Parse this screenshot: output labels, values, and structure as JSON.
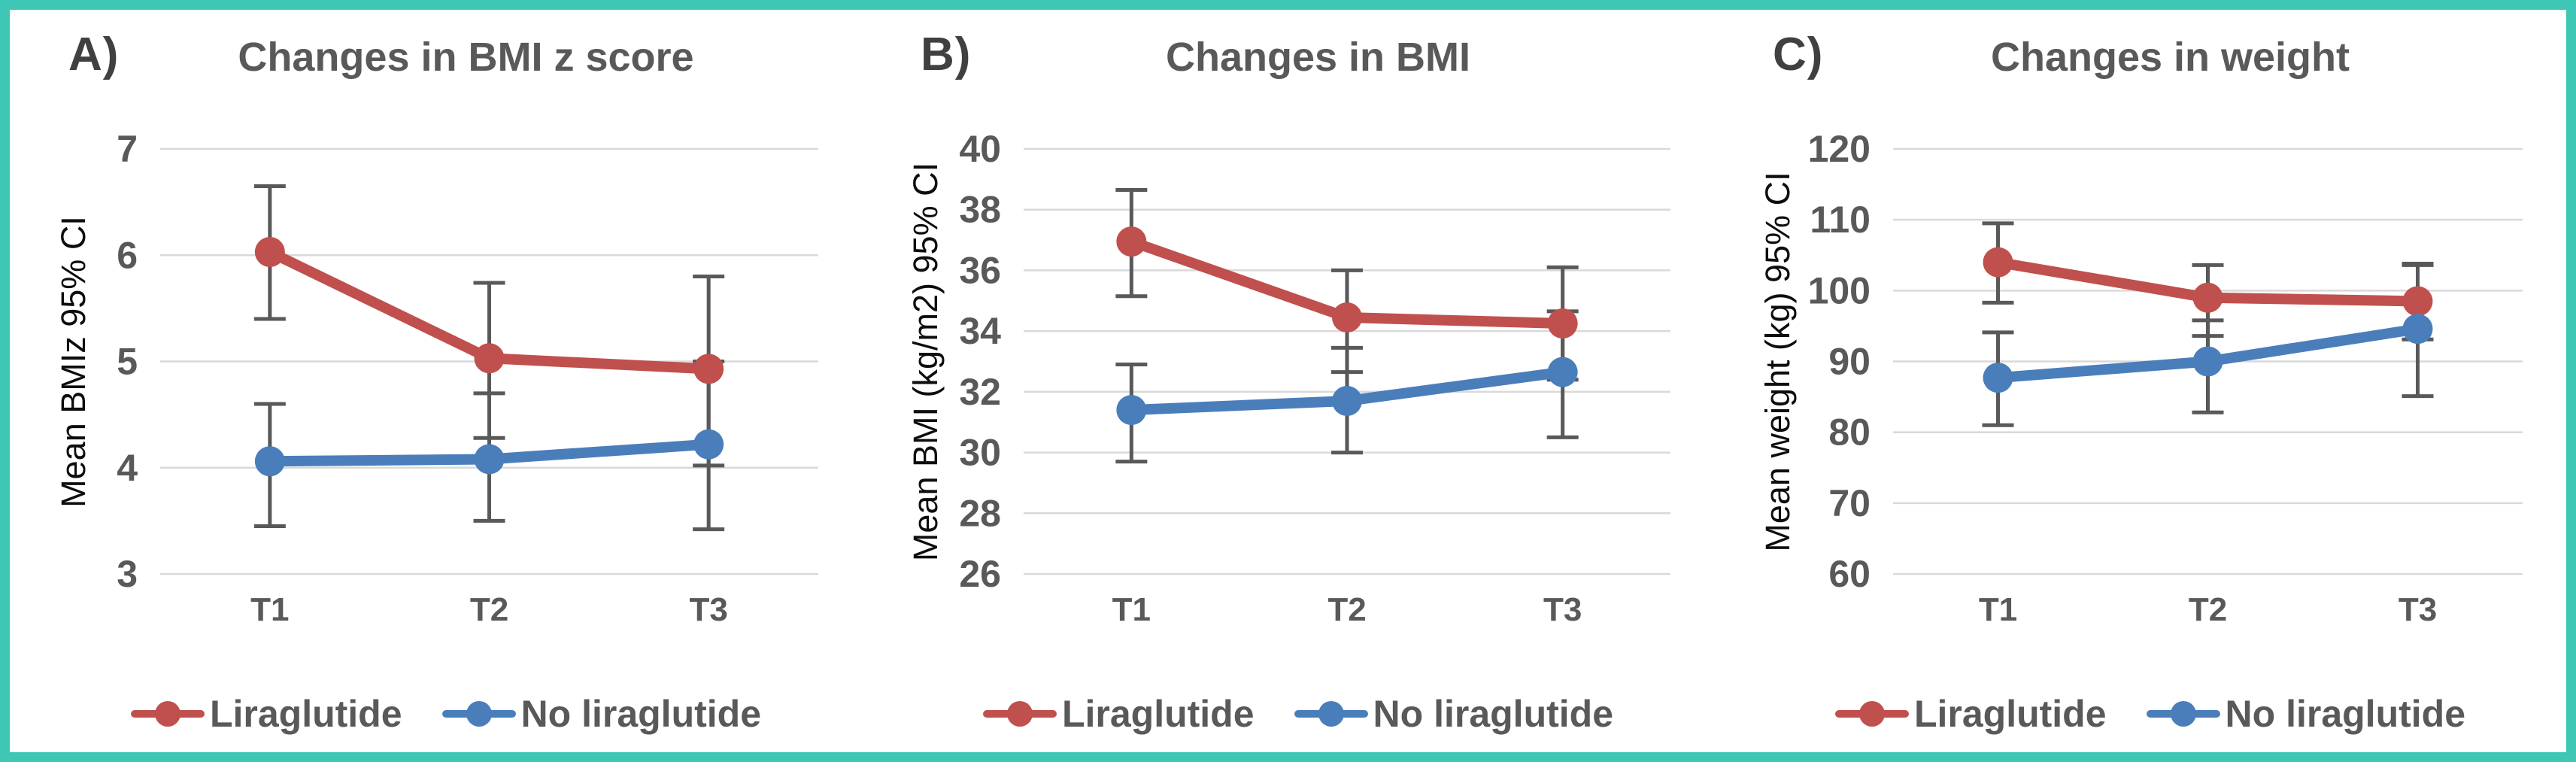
{
  "figure": {
    "border_color": "#3EC7B4",
    "background": "#FFFFFF",
    "text_color": "#595959",
    "axis_label_color": "#0D0D0D",
    "grid_color": "#D9D9D9",
    "error_bar_color": "#595959",
    "accent_red": "#C0504D",
    "accent_blue": "#4A7EBB"
  },
  "chart_data": [
    {
      "type": "line",
      "panel_label": "A)",
      "title": "Changes in BMI z score",
      "xlabel": "",
      "ylabel": "Mean BMIz 95% CI",
      "categories": [
        "T1",
        "T2",
        "T3"
      ],
      "yticks": [
        7,
        6,
        5,
        4,
        3
      ],
      "ylim": [
        3,
        7
      ],
      "grid": true,
      "legend_position": "bottom",
      "error_bars": true,
      "series": [
        {
          "name": "Liraglutide",
          "color": "#C0504D",
          "values": [
            6.03,
            5.03,
            4.93
          ],
          "ci_low": [
            5.4,
            4.28,
            4.02
          ],
          "ci_high": [
            6.65,
            5.74,
            5.8
          ]
        },
        {
          "name": "No liraglutide",
          "color": "#4A7EBB",
          "values": [
            4.06,
            4.08,
            4.22
          ],
          "ci_low": [
            3.45,
            3.5,
            3.42
          ],
          "ci_high": [
            4.6,
            4.7,
            5.0
          ]
        }
      ]
    },
    {
      "type": "line",
      "panel_label": "B)",
      "title": "Changes in BMI",
      "xlabel": "",
      "ylabel": "Mean BMI (kg/m2) 95% CI",
      "categories": [
        "T1",
        "T2",
        "T3"
      ],
      "yticks": [
        40,
        38,
        36,
        34,
        32,
        30,
        28,
        26
      ],
      "ylim": [
        26,
        40
      ],
      "grid": true,
      "legend_position": "bottom",
      "error_bars": true,
      "series": [
        {
          "name": "Liraglutide",
          "color": "#C0504D",
          "values": [
            36.95,
            34.45,
            34.25
          ],
          "ci_low": [
            35.15,
            32.65,
            32.4
          ],
          "ci_high": [
            38.65,
            36.0,
            36.1
          ]
        },
        {
          "name": "No liraglutide",
          "color": "#4A7EBB",
          "values": [
            31.4,
            31.7,
            32.65
          ],
          "ci_low": [
            29.7,
            30.0,
            30.5
          ],
          "ci_high": [
            32.9,
            33.45,
            34.65
          ]
        }
      ]
    },
    {
      "type": "line",
      "panel_label": "C)",
      "title": "Changes in weight",
      "xlabel": "",
      "ylabel": "Mean weight (kg) 95% CI",
      "categories": [
        "T1",
        "T2",
        "T3"
      ],
      "yticks": [
        120,
        110,
        100,
        90,
        80,
        70,
        60
      ],
      "ylim": [
        60,
        120
      ],
      "grid": true,
      "legend_position": "bottom",
      "error_bars": true,
      "series": [
        {
          "name": "Liraglutide",
          "color": "#C0504D",
          "values": [
            104.0,
            99.0,
            98.5
          ],
          "ci_low": [
            98.3,
            93.6,
            93.1
          ],
          "ci_high": [
            109.5,
            103.6,
            103.6
          ]
        },
        {
          "name": "No liraglutide",
          "color": "#4A7EBB",
          "values": [
            87.7,
            90.0,
            94.6
          ],
          "ci_low": [
            81.0,
            82.8,
            85.1
          ],
          "ci_high": [
            94.1,
            95.8,
            103.8
          ]
        }
      ]
    }
  ]
}
